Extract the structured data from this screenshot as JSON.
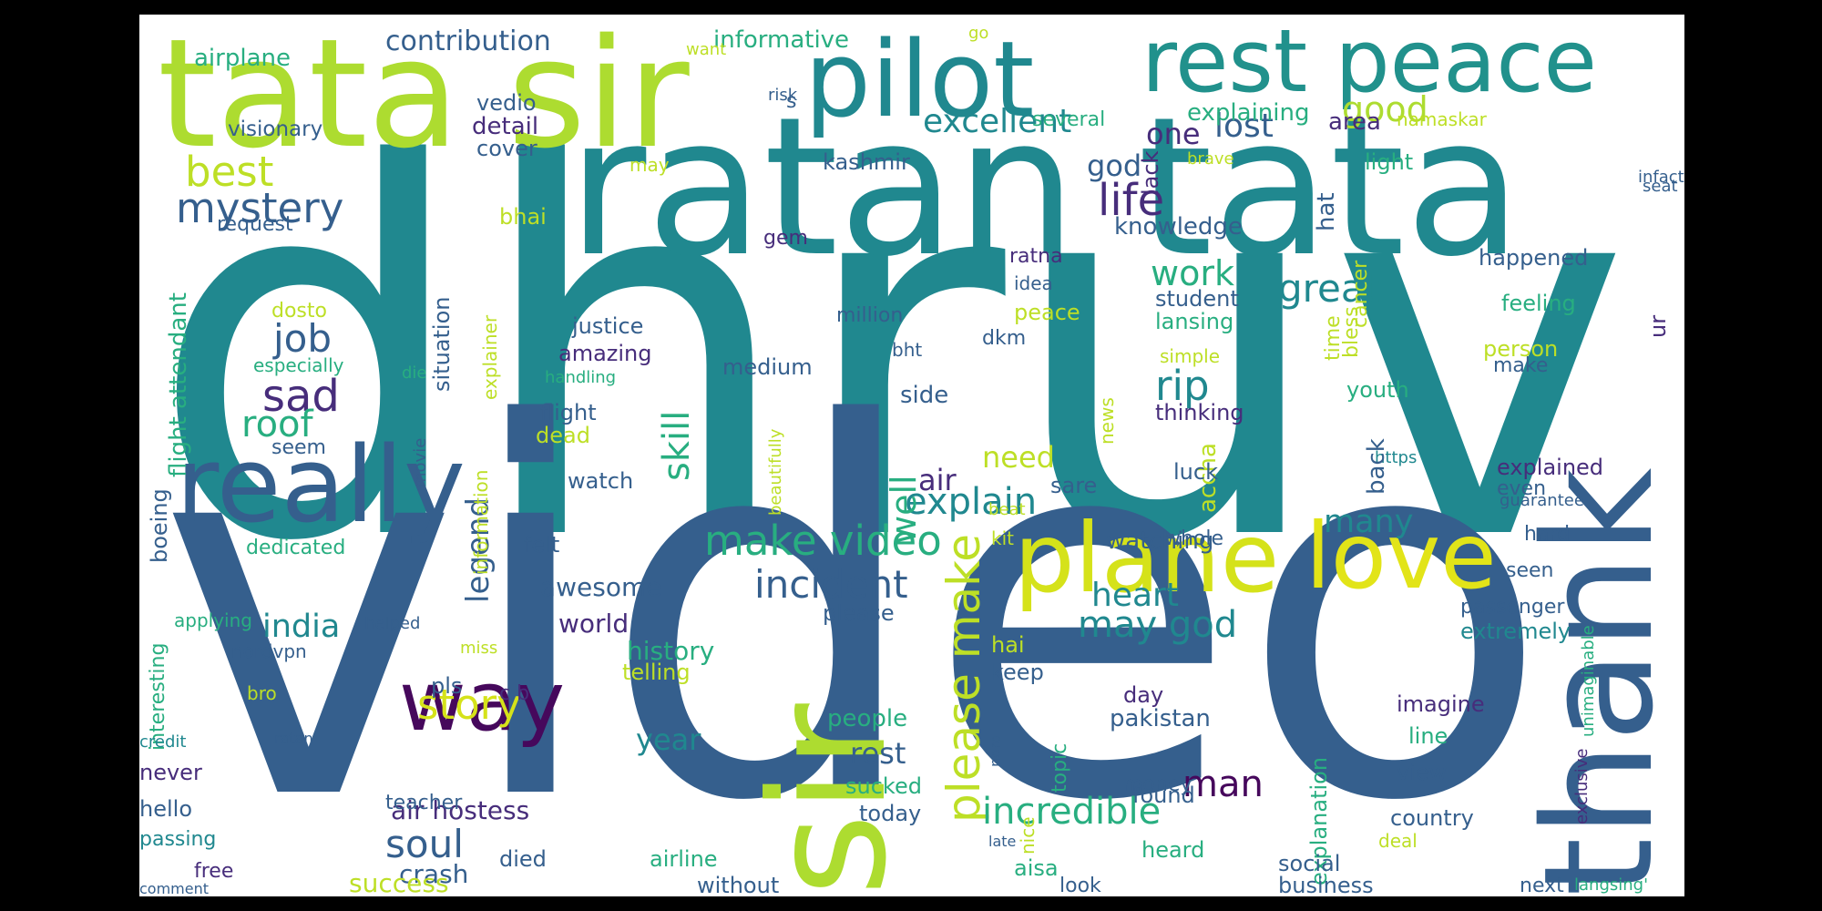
{
  "cloud": {
    "palette": {
      "dark-blue": "#355f8d",
      "teal": "#20888f",
      "green": "#28ae80",
      "lime": "#addc30",
      "yellow": "#e2e418",
      "purple": "#472d7b",
      "deep-purple": "#46085c"
    },
    "words": [
      {
        "text": "dhruv",
        "color": "#20888f"
      },
      {
        "text": "video",
        "color": "#355f8d"
      },
      {
        "text": "ratan tata",
        "color": "#20888f"
      },
      {
        "text": "tata sir",
        "color": "#addc30"
      },
      {
        "text": "pilot",
        "color": "#20888f"
      },
      {
        "text": "rest peace",
        "color": "#21918c"
      },
      {
        "text": "sir",
        "color": "#addc30"
      },
      {
        "text": "really",
        "color": "#355f8d"
      },
      {
        "text": "thank",
        "color": "#355f8d"
      },
      {
        "text": "plane",
        "color": "#d5e21a"
      },
      {
        "text": "love",
        "color": "#e2e418"
      },
      {
        "text": "way",
        "color": "#46085c"
      },
      {
        "text": "make video",
        "color": "#28ae80"
      },
      {
        "text": "incident",
        "color": "#355f8d"
      },
      {
        "text": "explain",
        "color": "#20888f"
      },
      {
        "text": "mystery",
        "color": "#355f8d"
      },
      {
        "text": "life",
        "color": "#472d7b"
      },
      {
        "text": "best",
        "color": "#bddf26"
      },
      {
        "text": "story",
        "color": "#d5e21a"
      },
      {
        "text": "please make",
        "color": "#bddf26"
      },
      {
        "text": "incredible",
        "color": "#28ae80"
      },
      {
        "text": "may god",
        "color": "#20888f"
      },
      {
        "text": "great",
        "color": "#20888f"
      },
      {
        "text": "excellent",
        "color": "#20888f"
      },
      {
        "text": "sad",
        "color": "#472d7b"
      },
      {
        "text": "man",
        "color": "#46085c"
      },
      {
        "text": "rip",
        "color": "#20888f"
      },
      {
        "text": "soul",
        "color": "#355f8d"
      },
      {
        "text": "india",
        "color": "#20888f"
      },
      {
        "text": "job",
        "color": "#355f8d"
      },
      {
        "text": "roof",
        "color": "#28ae80"
      },
      {
        "text": "heart",
        "color": "#20888f"
      },
      {
        "text": "lost",
        "color": "#355f8d"
      },
      {
        "text": "good",
        "color": "#addc30"
      },
      {
        "text": "work",
        "color": "#28ae80"
      },
      {
        "text": "skill",
        "color": "#28ae80"
      },
      {
        "text": "contribution",
        "color": "#355f8d"
      },
      {
        "text": "one",
        "color": "#472d7b"
      },
      {
        "text": "god",
        "color": "#355f8d"
      },
      {
        "text": "well",
        "color": "#28ae80"
      },
      {
        "text": "air",
        "color": "#472d7b"
      },
      {
        "text": "need",
        "color": "#bddf26"
      },
      {
        "text": "many",
        "color": "#20888f"
      },
      {
        "text": "legend",
        "color": "#355f8d"
      },
      {
        "text": "rest",
        "color": "#355f8d"
      },
      {
        "text": "year",
        "color": "#20888f"
      },
      {
        "text": "history",
        "color": "#28ae80"
      },
      {
        "text": "awesome",
        "color": "#355f8d"
      },
      {
        "text": "world",
        "color": "#472d7b"
      },
      {
        "text": "air hostess",
        "color": "#472d7b"
      },
      {
        "text": "crash",
        "color": "#355f8d"
      },
      {
        "text": "success",
        "color": "#bddf26"
      },
      {
        "text": "informative",
        "color": "#28ae80"
      },
      {
        "text": "airplane",
        "color": "#28ae80"
      },
      {
        "text": "explaining",
        "color": "#28ae80"
      },
      {
        "text": "area",
        "color": "#472d7b"
      },
      {
        "text": "knowledge",
        "color": "#355f8d"
      },
      {
        "text": "light",
        "color": "#28ae80"
      },
      {
        "text": "flight attendant",
        "color": "#28ae80"
      },
      {
        "text": "kashmir",
        "color": "#355f8d"
      },
      {
        "text": "visionary",
        "color": "#355f8d"
      },
      {
        "text": "detail",
        "color": "#472d7b"
      },
      {
        "text": "vedio",
        "color": "#355f8d"
      },
      {
        "text": "cover",
        "color": "#355f8d"
      },
      {
        "text": "namaskar",
        "color": "#bddf26"
      },
      {
        "text": "several",
        "color": "#28ae80"
      },
      {
        "text": "bhai",
        "color": "#bddf26"
      },
      {
        "text": "request",
        "color": "#355f8d"
      },
      {
        "text": "situation",
        "color": "#355f8d"
      },
      {
        "text": "explainer",
        "color": "#bddf26"
      },
      {
        "text": "gem",
        "color": "#472d7b"
      },
      {
        "text": "ratna",
        "color": "#472d7b"
      },
      {
        "text": "idea",
        "color": "#355f8d"
      },
      {
        "text": "student",
        "color": "#355f8d"
      },
      {
        "text": "peace",
        "color": "#bddf26"
      },
      {
        "text": "lansing",
        "color": "#28ae80"
      },
      {
        "text": "simple",
        "color": "#bddf26"
      },
      {
        "text": "million",
        "color": "#355f8d"
      },
      {
        "text": "dkm",
        "color": "#355f8d"
      },
      {
        "text": "justice",
        "color": "#355f8d"
      },
      {
        "text": "amazing",
        "color": "#472d7b"
      },
      {
        "text": "medium",
        "color": "#355f8d"
      },
      {
        "text": "dosto",
        "color": "#bddf26"
      },
      {
        "text": "especially",
        "color": "#28ae80"
      },
      {
        "text": "handling",
        "color": "#28ae80"
      },
      {
        "text": "flight",
        "color": "#355f8d"
      },
      {
        "text": "dead",
        "color": "#bddf26"
      },
      {
        "text": "side",
        "color": "#355f8d"
      },
      {
        "text": "thinking",
        "color": "#472d7b"
      },
      {
        "text": "youth",
        "color": "#28ae80"
      },
      {
        "text": "accha",
        "color": "#bddf26"
      },
      {
        "text": "luck",
        "color": "#355f8d"
      },
      {
        "text": "happened",
        "color": "#355f8d"
      },
      {
        "text": "feeling",
        "color": "#28ae80"
      },
      {
        "text": "person",
        "color": "#bddf26"
      },
      {
        "text": "make",
        "color": "#355f8d"
      },
      {
        "text": "ur",
        "color": "#472d7b"
      },
      {
        "text": "explained",
        "color": "#472d7b"
      },
      {
        "text": "even",
        "color": "#355f8d"
      },
      {
        "text": "hard",
        "color": "#355f8d"
      },
      {
        "text": "seen",
        "color": "#355f8d"
      },
      {
        "text": "passenger",
        "color": "#355f8d"
      },
      {
        "text": "extremely",
        "color": "#20888f"
      },
      {
        "text": "whole",
        "color": "#355f8d"
      },
      {
        "text": "watching",
        "color": "#355f8d"
      },
      {
        "text": "watch",
        "color": "#355f8d"
      },
      {
        "text": "felt",
        "color": "#355f8d"
      },
      {
        "text": "dedicated",
        "color": "#28ae80"
      },
      {
        "text": "movie",
        "color": "#355f8d"
      },
      {
        "text": "information",
        "color": "#bddf26"
      },
      {
        "text": "seem",
        "color": "#355f8d"
      },
      {
        "text": "interesting",
        "color": "#28ae80"
      },
      {
        "text": "boeing",
        "color": "#355f8d"
      },
      {
        "text": "applying",
        "color": "#28ae80"
      },
      {
        "text": "helped",
        "color": "#355f8d"
      },
      {
        "text": "miss",
        "color": "#bddf26"
      },
      {
        "text": "please",
        "color": "#355f8d"
      },
      {
        "text": "nordvpn",
        "color": "#355f8d"
      },
      {
        "text": "pls",
        "color": "#355f8d"
      },
      {
        "text": "c b",
        "color": "#472d7b"
      },
      {
        "text": "telling",
        "color": "#bddf26"
      },
      {
        "text": "bro",
        "color": "#bddf26"
      },
      {
        "text": "credit",
        "color": "#20888f"
      },
      {
        "text": "never",
        "color": "#472d7b"
      },
      {
        "text": "hello",
        "color": "#355f8d"
      },
      {
        "text": "passing",
        "color": "#20888f"
      },
      {
        "text": "free",
        "color": "#472d7b"
      },
      {
        "text": "comment",
        "color": "#355f8d"
      },
      {
        "text": "ratan",
        "color": "#355f8d"
      },
      {
        "text": "teacher",
        "color": "#355f8d"
      },
      {
        "text": "died",
        "color": "#355f8d"
      },
      {
        "text": "airline",
        "color": "#28ae80"
      },
      {
        "text": "without",
        "color": "#355f8d"
      },
      {
        "text": "people",
        "color": "#28ae80"
      },
      {
        "text": "sucked",
        "color": "#28ae80"
      },
      {
        "text": "today",
        "color": "#355f8d"
      },
      {
        "text": "hai",
        "color": "#bddf26"
      },
      {
        "text": "keep",
        "color": "#355f8d"
      },
      {
        "text": "kit",
        "color": "#bddf26"
      },
      {
        "text": "aisa",
        "color": "#28ae80"
      },
      {
        "text": "look",
        "color": "#355f8d"
      },
      {
        "text": "topic",
        "color": "#28ae80"
      },
      {
        "text": "nice",
        "color": "#bddf26"
      },
      {
        "text": "nord",
        "color": "#355f8d"
      },
      {
        "text": "late",
        "color": "#355f8d"
      },
      {
        "text": "day",
        "color": "#472d7b"
      },
      {
        "text": "pakistan",
        "color": "#355f8d"
      },
      {
        "text": "money",
        "color": "#355f8d"
      },
      {
        "text": "found",
        "color": "#355f8d"
      },
      {
        "text": "heard",
        "color": "#28ae80"
      },
      {
        "text": "explanation",
        "color": "#28ae80"
      },
      {
        "text": "social",
        "color": "#355f8d"
      },
      {
        "text": "business",
        "color": "#355f8d"
      },
      {
        "text": "imagine",
        "color": "#472d7b"
      },
      {
        "text": "line",
        "color": "#28ae80"
      },
      {
        "text": "view",
        "color": "#355f8d"
      },
      {
        "text": "country",
        "color": "#355f8d"
      },
      {
        "text": "deal",
        "color": "#bddf26"
      },
      {
        "text": "next",
        "color": "#355f8d"
      },
      {
        "text": "langsing'",
        "color": "#28ae80"
      },
      {
        "text": "exclusive",
        "color": "#472d7b"
      },
      {
        "text": "unimaginable",
        "color": "#28ae80"
      },
      {
        "text": "guarantee",
        "color": "#355f8d"
      },
      {
        "text": "beat",
        "color": "#bddf26"
      },
      {
        "text": "https",
        "color": "#20888f"
      },
      {
        "text": "sare",
        "color": "#355f8d"
      },
      {
        "text": "back",
        "color": "#355f8d"
      },
      {
        "text": "bless",
        "color": "#bddf26"
      },
      {
        "text": "time",
        "color": "#bddf26"
      },
      {
        "text": "hat",
        "color": "#355f8d"
      },
      {
        "text": "cancer",
        "color": "#bddf26"
      },
      {
        "text": "infact",
        "color": "#355f8d"
      },
      {
        "text": "seat",
        "color": "#355f8d"
      },
      {
        "text": "brave",
        "color": "#bddf26"
      },
      {
        "text": "lack",
        "color": "#472d7b"
      },
      {
        "text": "may",
        "color": "#bddf26"
      },
      {
        "text": "risk",
        "color": "#355f8d"
      },
      {
        "text": "s",
        "color": "#355f8d"
      },
      {
        "text": "want",
        "color": "#bddf26"
      },
      {
        "text": "go",
        "color": "#bddf26"
      },
      {
        "text": "news",
        "color": "#bddf26"
      },
      {
        "text": "beautifully",
        "color": "#bddf26"
      },
      {
        "text": "bht",
        "color": "#355f8d"
      },
      {
        "text": "die",
        "color": "#28ae80"
      }
    ]
  }
}
